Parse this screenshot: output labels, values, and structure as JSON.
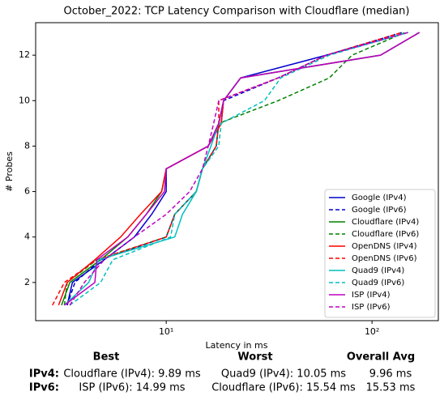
{
  "chart_data": {
    "type": "line",
    "title": "October_2022: TCP Latency Comparison with Cloudflare (median)",
    "xlabel": "Latency in ms",
    "ylabel": "# Probes",
    "xscale": "log",
    "xlim": [
      2.32,
      210
    ],
    "ylim": [
      0.32,
      13.43
    ],
    "xticks": [
      {
        "value": 10,
        "label": "10¹"
      },
      {
        "value": 100,
        "label": "10²"
      }
    ],
    "yticks": [
      2,
      4,
      6,
      8,
      10,
      12
    ],
    "legend": "lower right",
    "series": [
      {
        "name": "Google (IPv4)",
        "color": "#0000cc",
        "dashed": false,
        "x": [
          3.3,
          3.5,
          5,
          7,
          8.5,
          10,
          10,
          16,
          18.5,
          19,
          23,
          60,
          150
        ],
        "values": [
          1,
          2,
          3,
          4,
          5,
          6,
          7,
          8,
          9,
          10,
          11,
          12,
          13
        ]
      },
      {
        "name": "Google (IPv6)",
        "color": "#0000cc",
        "dashed": true,
        "x": [
          3.3,
          3.6,
          4.8,
          10,
          11,
          14,
          15,
          17.5,
          18,
          19,
          35,
          60,
          140
        ],
        "values": [
          1,
          2,
          3,
          4,
          5,
          6,
          7,
          8,
          9,
          10,
          11,
          12,
          13
        ]
      },
      {
        "name": "Cloudflare (IPv4)",
        "color": "#008000",
        "dashed": false,
        "x": [
          3.1,
          3.4,
          4.8,
          6.5,
          8,
          9.5,
          10,
          16,
          18,
          19,
          23,
          110,
          170
        ],
        "values": [
          1,
          2,
          3,
          4,
          5,
          6,
          7,
          8,
          9,
          10,
          11,
          12,
          13
        ]
      },
      {
        "name": "Cloudflare (IPv6)",
        "color": "#008000",
        "dashed": true,
        "x": [
          3.2,
          3.3,
          4.6,
          10,
          11,
          14,
          15,
          17.5,
          18,
          35,
          62,
          80,
          145
        ],
        "values": [
          1,
          2,
          3,
          4,
          5,
          6,
          7,
          8,
          9,
          10,
          11,
          12,
          13
        ]
      },
      {
        "name": "OpenDNS (IPv4)",
        "color": "#ff0000",
        "dashed": false,
        "x": [
          3.0,
          3.3,
          4.5,
          6,
          7.5,
          9.5,
          10,
          16,
          18.5,
          19,
          23,
          110,
          170
        ],
        "values": [
          1,
          2,
          3,
          4,
          5,
          6,
          7,
          8,
          9,
          10,
          11,
          12,
          13
        ]
      },
      {
        "name": "OpenDNS (IPv6)",
        "color": "#ff0000",
        "dashed": true,
        "x": [
          2.8,
          3.2,
          4.6,
          10,
          11,
          14,
          15,
          17.5,
          18,
          18,
          35,
          60,
          140
        ],
        "values": [
          1,
          2,
          3,
          4,
          5,
          6,
          7,
          8,
          9,
          10,
          11,
          12,
          13
        ]
      },
      {
        "name": "Quad9 (IPv4)",
        "color": "#00bfbf",
        "dashed": false,
        "x": [
          3.2,
          4.2,
          4.7,
          11,
          12,
          14,
          15,
          16.5,
          18,
          19,
          23,
          110,
          170
        ],
        "values": [
          1,
          2,
          3,
          4,
          5,
          6,
          7,
          8,
          9,
          10,
          11,
          12,
          13
        ]
      },
      {
        "name": "Quad9 (IPv6)",
        "color": "#00bfbf",
        "dashed": true,
        "x": [
          3.4,
          4.8,
          5.5,
          10.5,
          11,
          14,
          15,
          18,
          18.5,
          30,
          36,
          62,
          150
        ],
        "values": [
          1,
          2,
          3,
          4,
          5,
          6,
          7,
          8,
          9,
          10,
          11,
          12,
          13
        ]
      },
      {
        "name": "ISP (IPv4)",
        "color": "#bf00bf",
        "dashed": false,
        "x": [
          3.2,
          4.5,
          4.6,
          6.5,
          8,
          9.8,
          10,
          16,
          18,
          19,
          23,
          110,
          170
        ],
        "values": [
          1,
          2,
          3,
          4,
          5,
          6,
          7,
          8,
          9,
          10,
          11,
          12,
          13
        ]
      },
      {
        "name": "ISP (IPv6)",
        "color": "#bf00bf",
        "dashed": true,
        "x": [
          3.4,
          4,
          5,
          7,
          10,
          13,
          15,
          16,
          17,
          18,
          35,
          60,
          150
        ],
        "values": [
          1,
          2,
          3,
          4,
          5,
          6,
          7,
          8,
          9,
          10,
          11,
          12,
          13
        ]
      }
    ]
  },
  "summary": {
    "headers": [
      "Best",
      "Worst",
      "Overall Avg"
    ],
    "rows": [
      [
        "IPv4:",
        "Cloudflare (IPv4): 9.89 ms",
        "Quad9 (IPv4): 10.05 ms",
        "9.96 ms"
      ],
      [
        "IPv6:",
        "ISP (IPv6): 14.99 ms",
        "Cloudflare (IPv6): 15.54 ms",
        "15.53 ms"
      ]
    ]
  }
}
